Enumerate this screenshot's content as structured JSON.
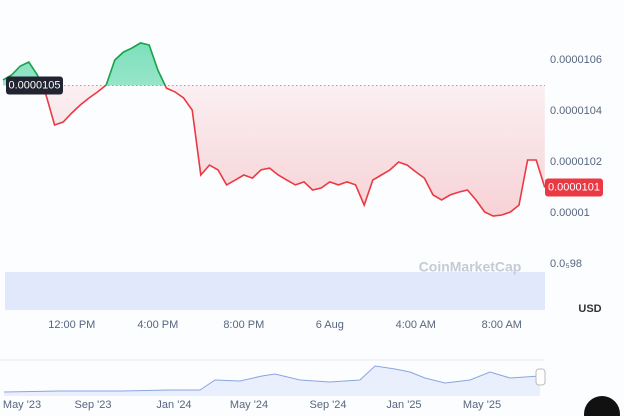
{
  "chart_data": {
    "type": "line",
    "categories": [
      null,
      null,
      null,
      null,
      null,
      null,
      null,
      null,
      "12:00 PM",
      null,
      null,
      null,
      null,
      null,
      null,
      null,
      null,
      null,
      "4:00 PM",
      null,
      null,
      null,
      null,
      null,
      null,
      null,
      null,
      null,
      "8:00 PM",
      null,
      null,
      null,
      null,
      null,
      null,
      null,
      null,
      null,
      "6 Aug",
      null,
      null,
      null,
      null,
      null,
      null,
      null,
      null,
      null,
      "4:00 AM",
      null,
      null,
      null,
      null,
      null,
      null,
      null,
      null,
      null,
      "8:00 AM",
      null,
      null,
      null,
      null,
      null
    ],
    "series": [
      {
        "values": [
          1.0522e-05,
          1.0541e-05,
          1.0576e-05,
          1.0592e-05,
          1.0541e-05,
          1.0463e-05,
          1.0345e-05,
          1.0357e-05,
          1.0392e-05,
          1.0424e-05,
          1.0451e-05,
          1.0475e-05,
          1.0502e-05,
          1.06e-05,
          1.0631e-05,
          1.0647e-05,
          1.0667e-05,
          1.0659e-05,
          1.0561e-05,
          1.049e-05,
          1.0475e-05,
          1.0451e-05,
          1.0404e-05,
          1.0149e-05,
          1.0188e-05,
          1.0169e-05,
          1.011e-05,
          1.0129e-05,
          1.0149e-05,
          1.0137e-05,
          1.0169e-05,
          1.0176e-05,
          1.0149e-05,
          1.0129e-05,
          1.011e-05,
          1.0122e-05,
          1.009e-05,
          1.0098e-05,
          1.0122e-05,
          1.011e-05,
          1.0122e-05,
          1.011e-05,
          1.0031e-05,
          1.0129e-05,
          1.0149e-05,
          1.0169e-05,
          1.02e-05,
          1.0188e-05,
          1.0161e-05,
          1.0137e-05,
          1.0071e-05,
          1.0051e-05,
          1.0071e-05,
          1.0082e-05,
          1.009e-05,
          1.0051e-05,
          1.0004e-05,
          9.988e-06,
          9.992e-06,
          1.0004e-05,
          1.0031e-05,
          1.0208e-05,
          1.0208e-05,
          1.01e-05
        ],
        "up_color": "#16a34a",
        "down_color": "#ea3943"
      }
    ],
    "baseline": 1.05e-05,
    "current_price": 1.01e-05,
    "ylim": [
      9.76e-06,
      1.066e-05
    ],
    "yticks": [
      1.06e-05,
      1.04e-05,
      1.02e-05,
      1e-05,
      {
        "value": 9.8e-06,
        "label": "0.0₅98"
      }
    ],
    "currency": "USD",
    "watermark": "CoinMarketCap",
    "navigator": {
      "categories": [
        "May '23",
        "Sep '23",
        "Jan '24",
        "May '24",
        "Sep '24",
        "Jan '25",
        "May '25"
      ]
    }
  }
}
